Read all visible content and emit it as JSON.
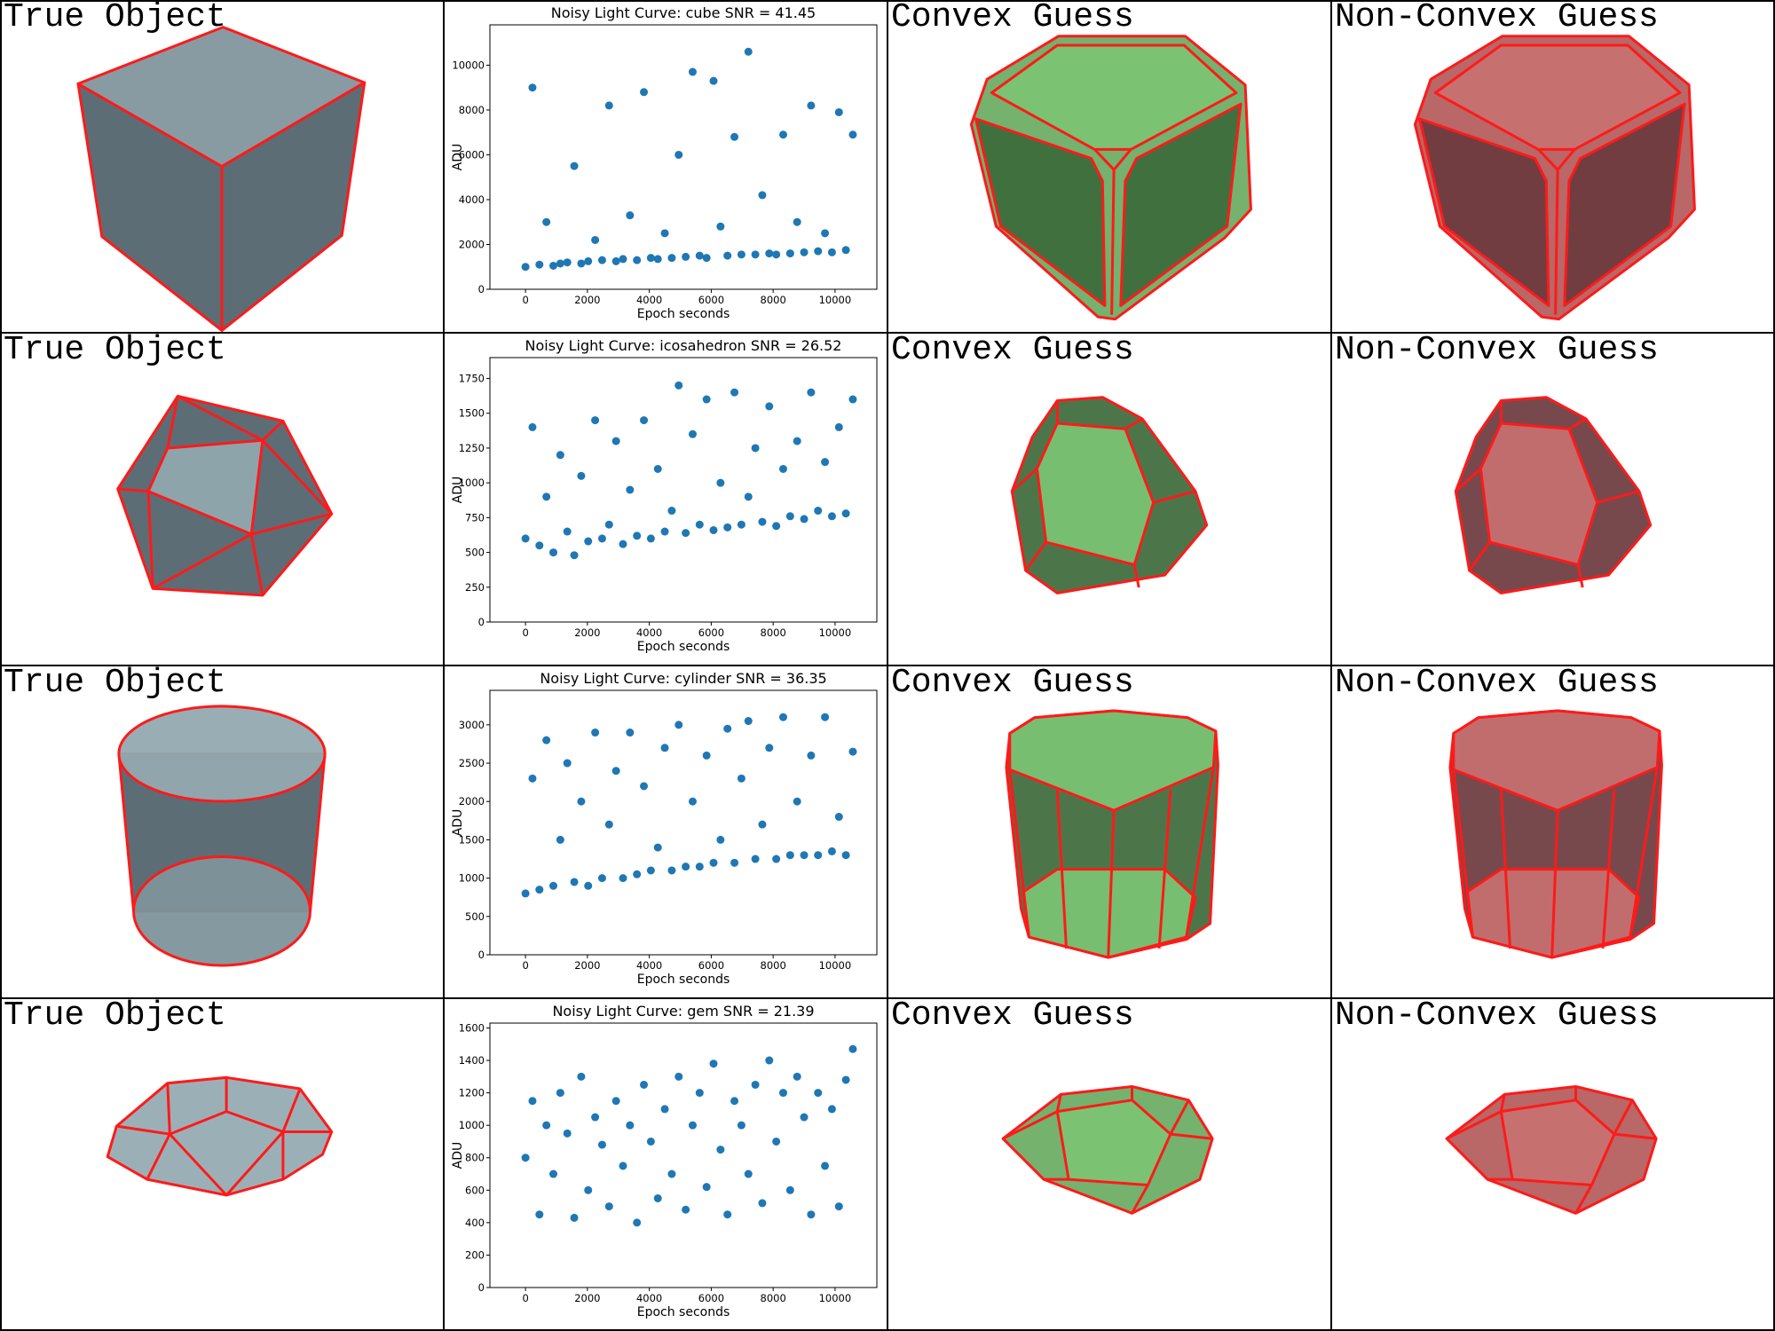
{
  "rows": [
    {
      "true_label": "True Object",
      "convex_label": "Convex Guess",
      "nonconvex_label": "Non-Convex Guess"
    },
    {
      "true_label": "True Object",
      "convex_label": "Convex Guess",
      "nonconvex_label": "Non-Convex Guess"
    },
    {
      "true_label": "True Object",
      "convex_label": "Convex Guess",
      "nonconvex_label": "Non-Convex Guess"
    },
    {
      "true_label": "True Object",
      "convex_label": "Convex Guess",
      "nonconvex_label": "Non-Convex Guess"
    }
  ],
  "chart_data": [
    {
      "type": "scatter",
      "title": "Noisy Light Curve: cube SNR = 41.45",
      "xlabel": "Epoch seconds",
      "ylabel": "ADU",
      "color": "#1f77b4",
      "xlim": [
        -1150,
        11350
      ],
      "ylim": [
        0,
        11800
      ],
      "xticks": [
        0,
        2000,
        4000,
        6000,
        8000,
        10000
      ],
      "yticks": [
        0,
        2000,
        4000,
        6000,
        8000,
        10000
      ],
      "x": [
        0,
        225,
        450,
        675,
        900,
        1125,
        1350,
        1575,
        1800,
        2025,
        2250,
        2475,
        2700,
        2925,
        3150,
        3375,
        3600,
        3825,
        4050,
        4275,
        4500,
        4725,
        4950,
        5175,
        5400,
        5625,
        5850,
        6075,
        6300,
        6525,
        6750,
        6975,
        7200,
        7425,
        7650,
        7875,
        8100,
        8325,
        8550,
        8775,
        9000,
        9225,
        9450,
        9675,
        9900,
        10125,
        10350,
        10575
      ],
      "values": [
        1000,
        9000,
        1100,
        3000,
        1050,
        1150,
        1200,
        5500,
        1150,
        1250,
        2200,
        1300,
        8200,
        1250,
        1350,
        3300,
        1300,
        8800,
        1400,
        1350,
        2500,
        1400,
        6000,
        1450,
        9700,
        1500,
        1400,
        9300,
        2800,
        1500,
        6800,
        1550,
        10600,
        1550,
        4200,
        1600,
        1550,
        6900,
        1600,
        3000,
        1650,
        8200,
        1700,
        2500,
        1650,
        7900,
        1750,
        6900
      ]
    },
    {
      "type": "scatter",
      "title": "Noisy Light Curve: icosahedron SNR = 26.52",
      "xlabel": "Epoch seconds",
      "ylabel": "ADU",
      "color": "#1f77b4",
      "xlim": [
        -1150,
        11350
      ],
      "ylim": [
        0,
        1900
      ],
      "xticks": [
        0,
        2000,
        4000,
        6000,
        8000,
        10000
      ],
      "yticks": [
        0,
        250,
        500,
        750,
        1000,
        1250,
        1500,
        1750
      ],
      "x": [
        0,
        225,
        450,
        675,
        900,
        1125,
        1350,
        1575,
        1800,
        2025,
        2250,
        2475,
        2700,
        2925,
        3150,
        3375,
        3600,
        3825,
        4050,
        4275,
        4500,
        4725,
        4950,
        5175,
        5400,
        5625,
        5850,
        6075,
        6300,
        6525,
        6750,
        6975,
        7200,
        7425,
        7650,
        7875,
        8100,
        8325,
        8550,
        8775,
        9000,
        9225,
        9450,
        9675,
        9900,
        10125,
        10350,
        10575
      ],
      "values": [
        600,
        1400,
        550,
        900,
        500,
        1200,
        650,
        480,
        1050,
        580,
        1450,
        600,
        700,
        1300,
        560,
        950,
        620,
        1450,
        600,
        1100,
        650,
        800,
        1700,
        640,
        1350,
        700,
        1600,
        660,
        1000,
        680,
        1650,
        700,
        900,
        1250,
        720,
        1550,
        690,
        1100,
        760,
        1300,
        740,
        1650,
        800,
        1150,
        760,
        1400,
        780,
        1600
      ]
    },
    {
      "type": "scatter",
      "title": "Noisy Light Curve: cylinder SNR = 36.35",
      "xlabel": "Epoch seconds",
      "ylabel": "ADU",
      "color": "#1f77b4",
      "xlim": [
        -1150,
        11350
      ],
      "ylim": [
        0,
        3450
      ],
      "xticks": [
        0,
        2000,
        4000,
        6000,
        8000,
        10000
      ],
      "yticks": [
        0,
        500,
        1000,
        1500,
        2000,
        2500,
        3000
      ],
      "x": [
        0,
        225,
        450,
        675,
        900,
        1125,
        1350,
        1575,
        1800,
        2025,
        2250,
        2475,
        2700,
        2925,
        3150,
        3375,
        3600,
        3825,
        4050,
        4275,
        4500,
        4725,
        4950,
        5175,
        5400,
        5625,
        5850,
        6075,
        6300,
        6525,
        6750,
        6975,
        7200,
        7425,
        7650,
        7875,
        8100,
        8325,
        8550,
        8775,
        9000,
        9225,
        9450,
        9675,
        9900,
        10125,
        10350,
        10575
      ],
      "values": [
        800,
        2300,
        850,
        2800,
        900,
        1500,
        2500,
        950,
        2000,
        900,
        2900,
        1000,
        1700,
        2400,
        1000,
        2900,
        1050,
        2200,
        1100,
        1400,
        2700,
        1100,
        3000,
        1150,
        2000,
        1150,
        2600,
        1200,
        1500,
        2950,
        1200,
        2300,
        3050,
        1250,
        1700,
        2700,
        1250,
        3100,
        1300,
        2000,
        1300,
        2600,
        1300,
        3100,
        1350,
        1800,
        1300,
        2650
      ]
    },
    {
      "type": "scatter",
      "title": "Noisy Light Curve: gem SNR = 21.39",
      "xlabel": "Epoch seconds",
      "ylabel": "ADU",
      "color": "#1f77b4",
      "xlim": [
        -1150,
        11350
      ],
      "ylim": [
        0,
        1630
      ],
      "xticks": [
        0,
        2000,
        4000,
        6000,
        8000,
        10000
      ],
      "yticks": [
        0,
        200,
        400,
        600,
        800,
        1000,
        1200,
        1400,
        1600
      ],
      "x": [
        0,
        225,
        450,
        675,
        900,
        1125,
        1350,
        1575,
        1800,
        2025,
        2250,
        2475,
        2700,
        2925,
        3150,
        3375,
        3600,
        3825,
        4050,
        4275,
        4500,
        4725,
        4950,
        5175,
        5400,
        5625,
        5850,
        6075,
        6300,
        6525,
        6750,
        6975,
        7200,
        7425,
        7650,
        7875,
        8100,
        8325,
        8550,
        8775,
        9000,
        9225,
        9450,
        9675,
        9900,
        10125,
        10350,
        10575
      ],
      "values": [
        800,
        1150,
        450,
        1000,
        700,
        1200,
        950,
        430,
        1300,
        600,
        1050,
        880,
        500,
        1150,
        750,
        1000,
        400,
        1250,
        900,
        550,
        1100,
        700,
        1300,
        480,
        1000,
        1200,
        620,
        1380,
        850,
        450,
        1150,
        1000,
        700,
        1250,
        520,
        1400,
        900,
        1200,
        600,
        1300,
        1050,
        450,
        1200,
        750,
        1100,
        500,
        1280,
        1470
      ]
    }
  ]
}
